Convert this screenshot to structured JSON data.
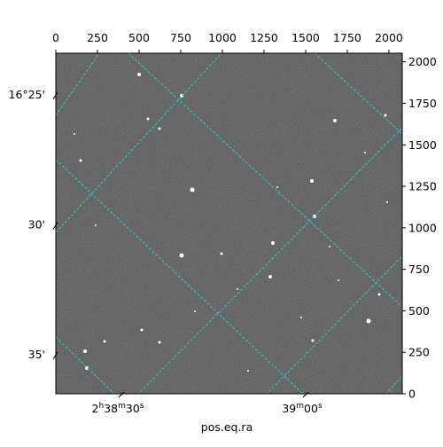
{
  "chart_data": {
    "type": "image",
    "xlabel": "pos.eq.ra",
    "xlim": [
      0,
      2080
    ],
    "xticks": [
      0,
      250,
      500,
      750,
      1000,
      1250,
      1500,
      1750,
      2000
    ],
    "ylim": [
      0,
      2052
    ],
    "yticks": [
      0,
      250,
      500,
      750,
      1000,
      1250,
      1500,
      1750,
      2000
    ],
    "ra_ticks": [
      "2h38m30s",
      "39m00s"
    ],
    "dec_ticks": [
      "16°25'",
      "30'",
      "35'"
    ],
    "grid_color": "#22cccc"
  }
}
